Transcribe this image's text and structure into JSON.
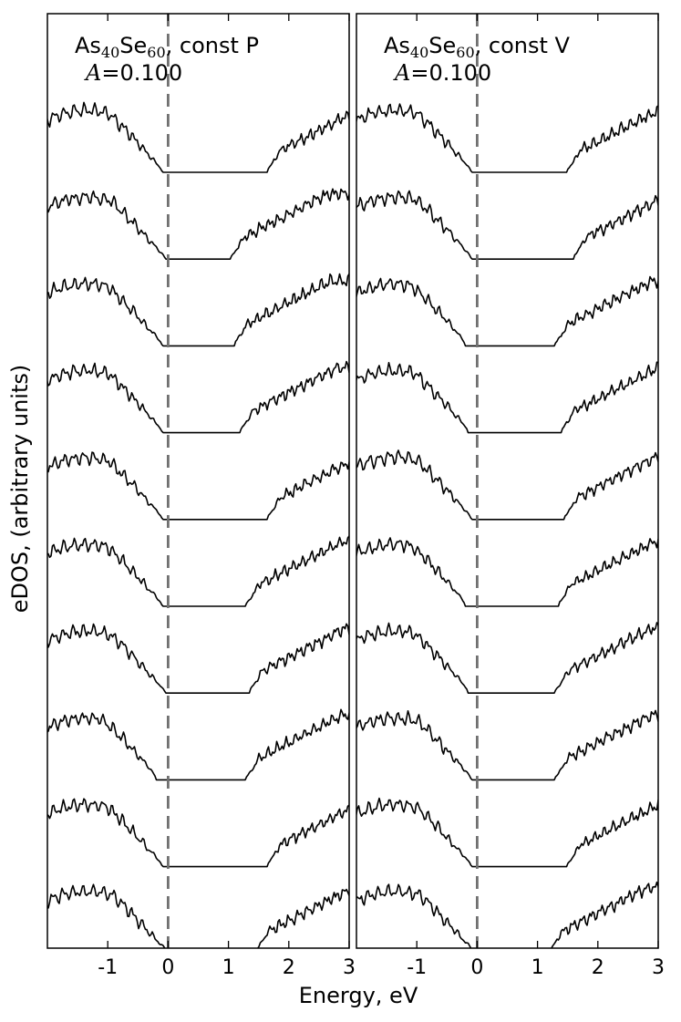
{
  "figure": {
    "ylabel": "eDOS, (arbitrary units)",
    "xlabel": "Energy, eV"
  },
  "chart_data": [
    {
      "type": "line",
      "title_prefix": "As",
      "title_sub1": "40",
      "title_mid": "Se",
      "title_sub2": "60",
      "title_suffix": ", const P",
      "param_symbol": "A",
      "param_value": "=0.100",
      "xlim": [
        -2,
        3
      ],
      "xticks": [
        -1,
        0,
        1,
        2,
        3
      ],
      "xtick_labels": [
        "-1",
        "0",
        "1",
        "2",
        "3"
      ],
      "vline_x": 0,
      "curve_count": 10,
      "gaps": [
        {
          "vb_edge": -0.1,
          "cb_edge": 1.65
        },
        {
          "vb_edge": -0.05,
          "cb_edge": 1.05
        },
        {
          "vb_edge": -0.1,
          "cb_edge": 1.1
        },
        {
          "vb_edge": -0.1,
          "cb_edge": 1.2
        },
        {
          "vb_edge": -0.1,
          "cb_edge": 1.65
        },
        {
          "vb_edge": -0.1,
          "cb_edge": 1.3
        },
        {
          "vb_edge": -0.05,
          "cb_edge": 1.35
        },
        {
          "vb_edge": -0.2,
          "cb_edge": 1.3
        },
        {
          "vb_edge": -0.1,
          "cb_edge": 1.65
        },
        {
          "vb_edge": 0.0,
          "cb_edge": 1.45
        }
      ]
    },
    {
      "type": "line",
      "title_prefix": "As",
      "title_sub1": "40",
      "title_mid": "Se",
      "title_sub2": "60",
      "title_suffix": ", const V",
      "param_symbol": "A",
      "param_value": "=0.100",
      "xlim": [
        -2,
        3
      ],
      "xticks": [
        -1,
        0,
        1,
        2,
        3
      ],
      "xtick_labels": [
        "-1",
        "0",
        "1",
        "2",
        "3"
      ],
      "vline_x": 0,
      "curve_count": 10,
      "gaps": [
        {
          "vb_edge": -0.1,
          "cb_edge": 1.5
        },
        {
          "vb_edge": -0.1,
          "cb_edge": 1.6
        },
        {
          "vb_edge": -0.2,
          "cb_edge": 1.3
        },
        {
          "vb_edge": -0.15,
          "cb_edge": 1.4
        },
        {
          "vb_edge": -0.1,
          "cb_edge": 1.45
        },
        {
          "vb_edge": -0.2,
          "cb_edge": 1.35
        },
        {
          "vb_edge": -0.15,
          "cb_edge": 1.3
        },
        {
          "vb_edge": -0.1,
          "cb_edge": 1.3
        },
        {
          "vb_edge": -0.1,
          "cb_edge": 1.5
        },
        {
          "vb_edge": -0.05,
          "cb_edge": 1.2
        }
      ]
    }
  ]
}
